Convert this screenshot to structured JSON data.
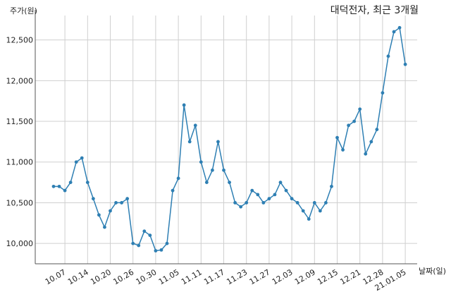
{
  "chart_data": {
    "type": "line",
    "title": "대덕전자, 최근 3개월",
    "ylabel": "주가(원)",
    "xlabel": "날짜(일)",
    "ylim": [
      9750,
      12800
    ],
    "yticks": [
      10000,
      10500,
      11000,
      11500,
      12000,
      12500
    ],
    "ytick_labels": [
      "10,000",
      "10,500",
      "11,000",
      "11,500",
      "12,000",
      "12,500"
    ],
    "xtick_labels": [
      "10.07",
      "10.14",
      "10.20",
      "10.26",
      "10.30",
      "11.05",
      "11.11",
      "11.17",
      "11.23",
      "11.27",
      "12.03",
      "12.09",
      "12.15",
      "12.21",
      "12.28",
      "21.01.05"
    ],
    "xtick_index": [
      2,
      6,
      10,
      14,
      18,
      22,
      26,
      30,
      34,
      38,
      42,
      46,
      50,
      54,
      58,
      62
    ],
    "grid": true,
    "line_color": "#2e7fb3",
    "series": [
      {
        "values": [
          10700,
          10700,
          10650,
          10750,
          11000,
          11050,
          10750,
          10550,
          10350,
          10200,
          10400,
          10500,
          10500,
          10550,
          10000,
          9975,
          10150,
          10100,
          9910,
          9920,
          10000,
          10650,
          10800,
          11700,
          11250,
          11450,
          11000,
          10750,
          10900,
          11250,
          10900,
          10750,
          10500,
          10450,
          10500,
          10650,
          10600,
          10500,
          10550,
          10600,
          10750,
          10650,
          10550,
          10500,
          10400,
          10300,
          10500,
          10400,
          10500,
          10700,
          11300,
          11150,
          11450,
          11500,
          11650,
          11100,
          11250,
          11400,
          11850,
          12300,
          12600,
          12650,
          12200
        ]
      }
    ]
  }
}
